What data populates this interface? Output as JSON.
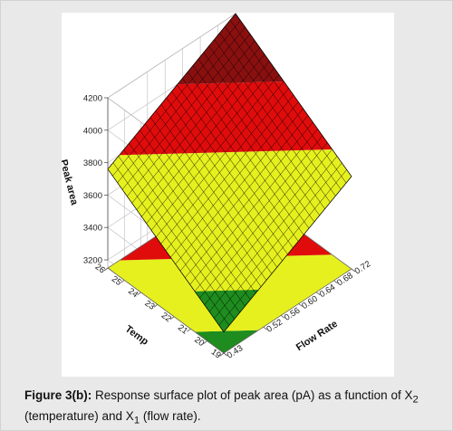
{
  "caption": {
    "figure_label": "Figure 3(b):",
    "text_part1": " Response surface plot of peak area (pA) as a function of X",
    "sub1": "2",
    "text_part2": " (temperature) and X",
    "sub2": "1",
    "text_part3": " (flow rate)."
  },
  "chart_data": {
    "type": "surface3d",
    "panel_label": "[b]",
    "z_label": "Peak area",
    "x_label": "Flow Rate",
    "y_label": "Temp",
    "z_ticks": [
      "3200",
      "3400",
      "3600",
      "3800",
      "4000",
      "4200"
    ],
    "x_ticks": [
      "0.43",
      "0.52",
      "0.56",
      "0.60",
      "0.64",
      "0.68",
      "0.72"
    ],
    "y_ticks": [
      "19",
      "20",
      "21",
      "22",
      "23",
      "24",
      "25",
      "26"
    ],
    "x_range": [
      0.43,
      0.72
    ],
    "y_range": [
      19,
      26
    ],
    "z_range": [
      3150,
      4200
    ],
    "corner_values": {
      "flow_low_temp_low": 3280,
      "flow_high_temp_low": 3720,
      "flow_low_temp_high": 3760,
      "flow_high_temp_high": 4200
    },
    "contour_levels": [
      3400,
      3800,
      4000
    ],
    "colors": {
      "green": "#1e8c1e",
      "yellow": "#e6f01e",
      "red": "#e00c0c",
      "dark_red": "#8a1010",
      "mesh": "#000000"
    }
  }
}
